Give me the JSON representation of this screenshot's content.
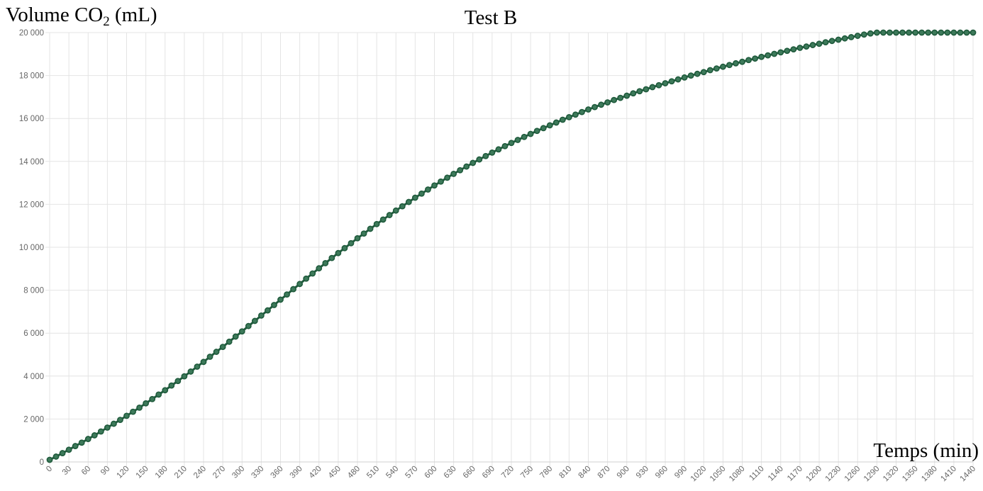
{
  "chart_data": {
    "type": "line",
    "title": "Test B",
    "ylabel": "Volume CO",
    "ylabel_sub": "2",
    "ylabel_unit": " (mL)",
    "xlabel": "Temps (min)",
    "xlim": [
      0,
      1440
    ],
    "ylim": [
      0,
      20000
    ],
    "x_step": 10,
    "x_ticks": [
      0,
      30,
      60,
      90,
      120,
      150,
      180,
      210,
      240,
      270,
      300,
      330,
      360,
      390,
      420,
      450,
      480,
      510,
      540,
      570,
      600,
      630,
      660,
      690,
      720,
      750,
      780,
      810,
      840,
      870,
      900,
      930,
      960,
      990,
      1020,
      1050,
      1080,
      1110,
      1140,
      1170,
      1200,
      1230,
      1260,
      1290,
      1320,
      1350,
      1380,
      1410,
      1440
    ],
    "y_ticks": [
      "0",
      "2 000",
      "4 000",
      "6 000",
      "8 000",
      "10 000",
      "12 000",
      "14 000",
      "16 000",
      "18 000",
      "20 000"
    ],
    "y_tick_values": [
      0,
      2000,
      4000,
      6000,
      8000,
      10000,
      12000,
      14000,
      16000,
      18000,
      20000
    ],
    "grid": true,
    "line_color": "#1f5a3c",
    "marker_fill": "#3d7a5a",
    "series": [
      {
        "values": [
          100,
          250,
          410,
          570,
          740,
          900,
          1070,
          1240,
          1420,
          1600,
          1780,
          1960,
          2150,
          2340,
          2530,
          2730,
          2930,
          3140,
          3340,
          3560,
          3770,
          3990,
          4210,
          4440,
          4660,
          4900,
          5130,
          5360,
          5600,
          5840,
          6080,
          6330,
          6570,
          6820,
          7060,
          7310,
          7560,
          7800,
          8050,
          8290,
          8540,
          8780,
          9020,
          9260,
          9500,
          9730,
          9960,
          10190,
          10420,
          10640,
          10860,
          11080,
          11290,
          11500,
          11710,
          11910,
          12110,
          12310,
          12500,
          12690,
          12880,
          13060,
          13240,
          13420,
          13590,
          13760,
          13930,
          14090,
          14250,
          14410,
          14560,
          14710,
          14860,
          15000,
          15140,
          15280,
          15420,
          15550,
          15680,
          15810,
          15940,
          16060,
          16180,
          16300,
          16420,
          16530,
          16640,
          16750,
          16860,
          16960,
          17060,
          17170,
          17270,
          17360,
          17460,
          17550,
          17640,
          17730,
          17820,
          17910,
          18000,
          18080,
          18160,
          18250,
          18330,
          18410,
          18490,
          18570,
          18640,
          18720,
          18790,
          18870,
          18940,
          19010,
          19080,
          19150,
          19220,
          19290,
          19350,
          19420,
          19480,
          19550,
          19610,
          19670,
          19730,
          19790,
          19850,
          19910,
          19960,
          20020,
          20080,
          20130,
          20190,
          20240,
          20290,
          20350,
          20400,
          20450,
          20500,
          20550,
          20600,
          20650,
          20700,
          20750,
          20800
        ]
      }
    ]
  }
}
